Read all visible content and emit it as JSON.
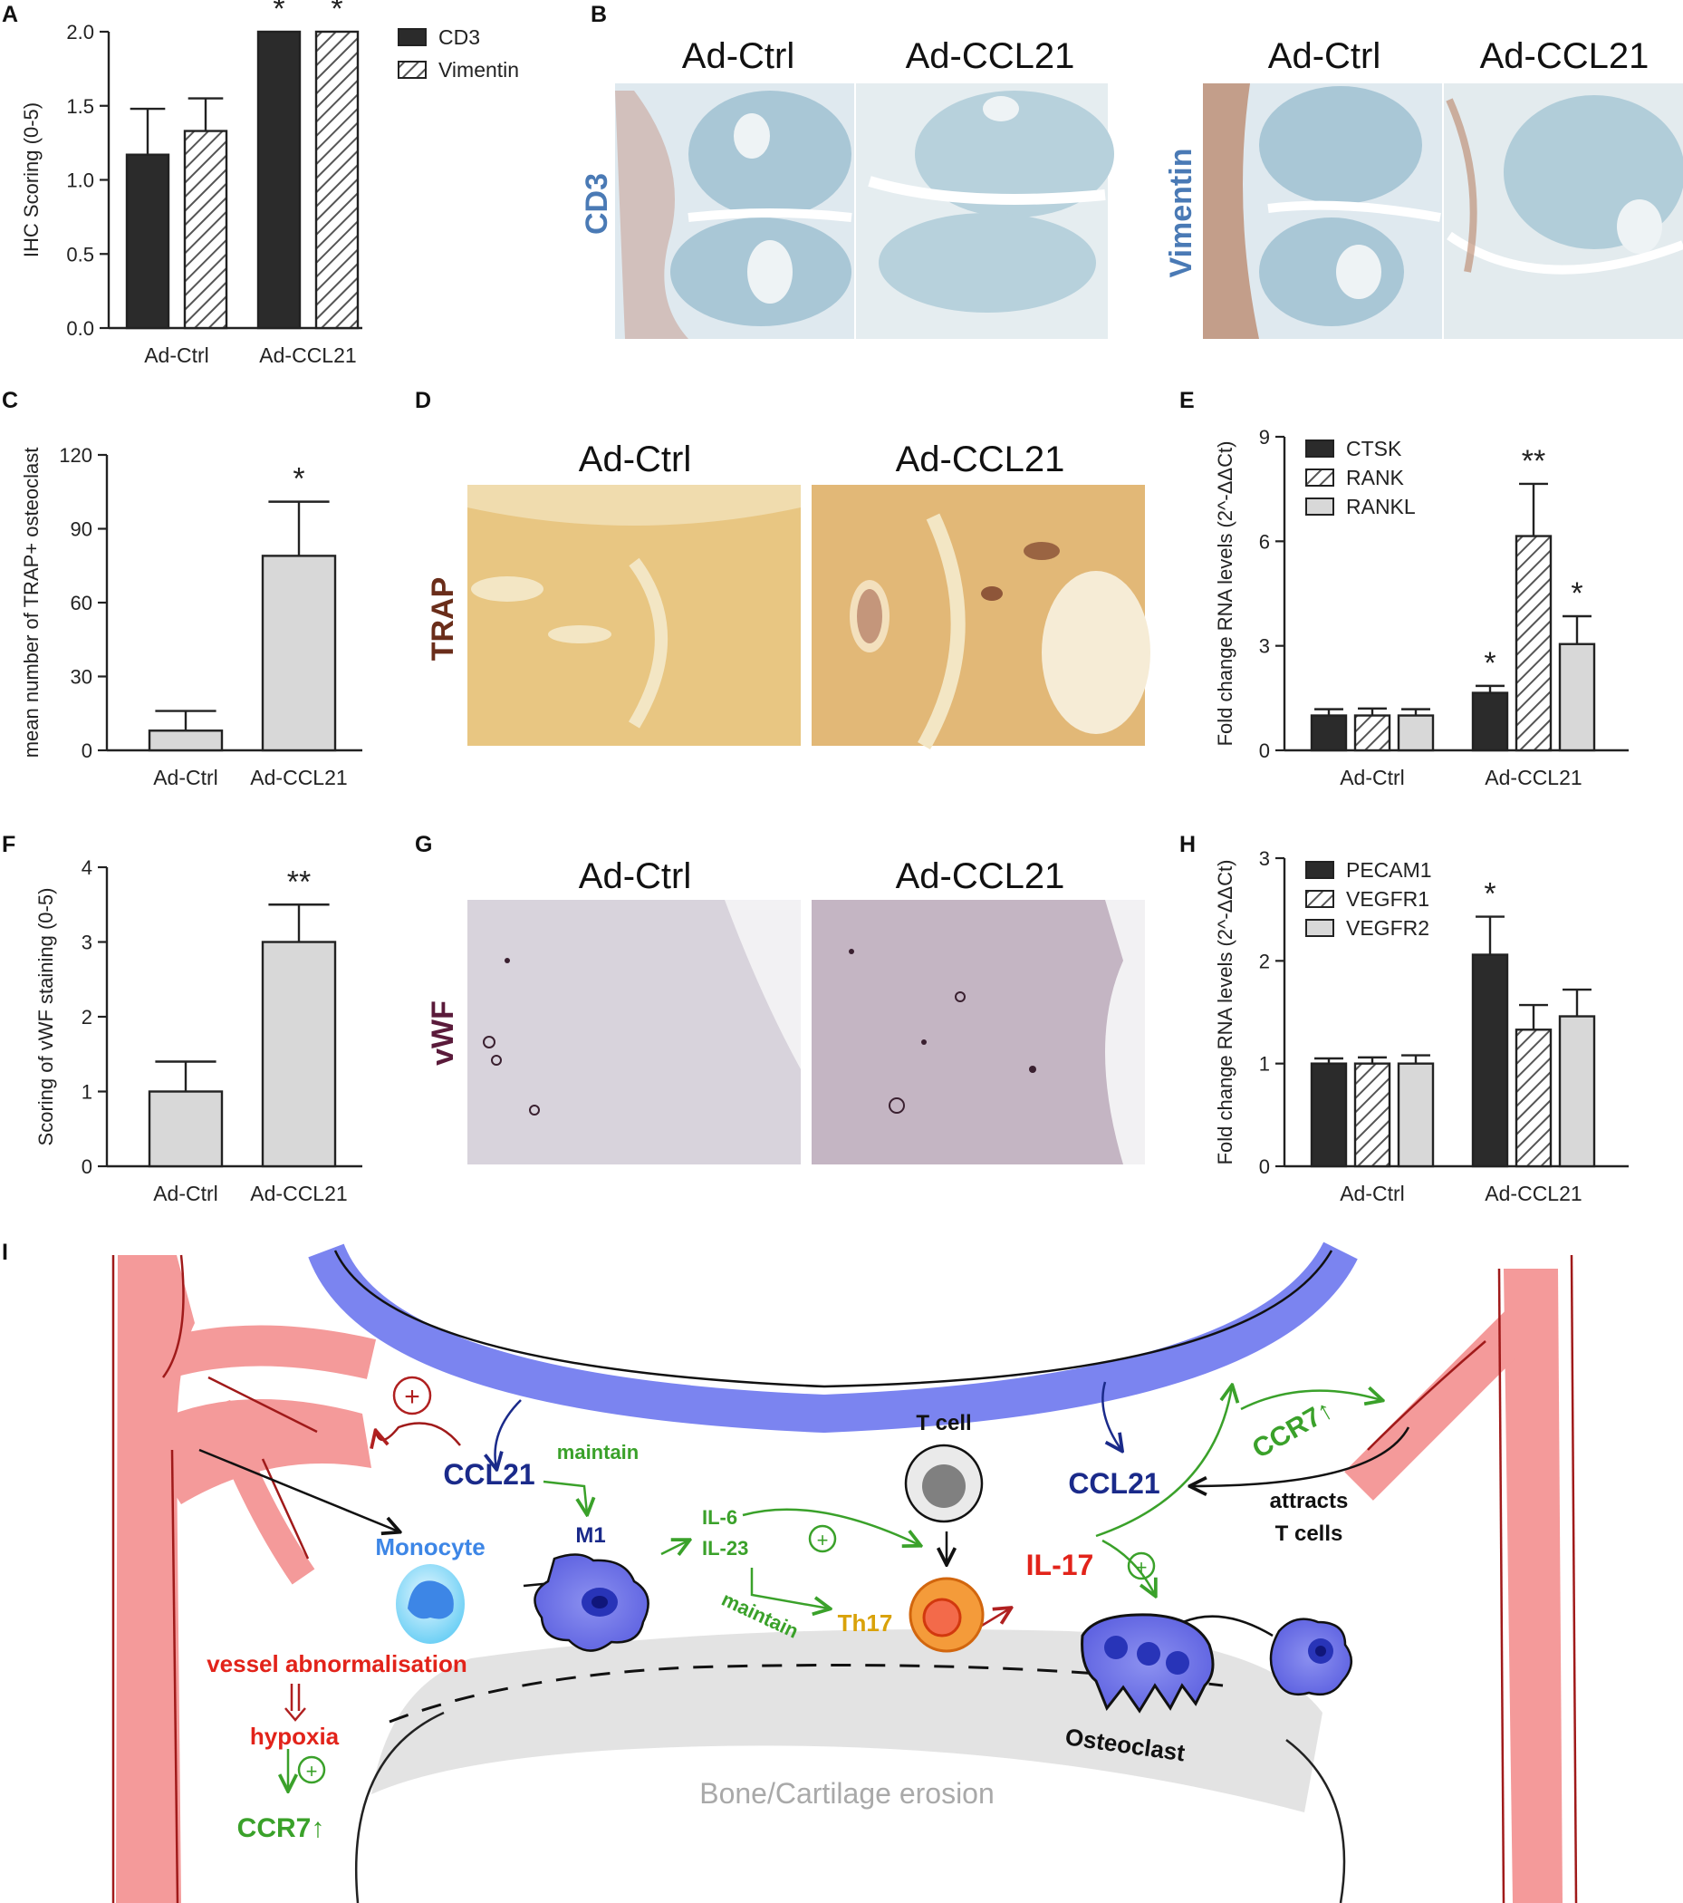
{
  "colors": {
    "dark": "#2b2b2b",
    "light": "#d8d8d8",
    "stain_blue": "#4a7ab5",
    "trap": "#6a2d1a",
    "vwf": "#5a1a3a"
  },
  "panel_labels": [
    "A",
    "B",
    "C",
    "D",
    "E",
    "F",
    "G",
    "H",
    "I"
  ],
  "chart_data": [
    {
      "panel": "A",
      "type": "bar",
      "categories": [
        "Ad-Ctrl",
        "Ad-CCL21"
      ],
      "ylabel": "IHC Scoring (0-5)",
      "ylim": [
        0,
        2.0
      ],
      "yticks": [
        "0.0",
        "0.5",
        "1.0",
        "1.5",
        "2.0"
      ],
      "series": [
        {
          "name": "CD3",
          "style": "solid-dark",
          "values": [
            1.17,
            2.0
          ],
          "errors": [
            0.31,
            0
          ],
          "marks": [
            "",
            "*"
          ]
        },
        {
          "name": "Vimentin",
          "style": "hatched",
          "values": [
            1.33,
            2.0
          ],
          "errors": [
            0.22,
            0
          ],
          "marks": [
            "",
            "*"
          ]
        }
      ],
      "legend": "right"
    },
    {
      "panel": "C",
      "type": "bar",
      "categories": [
        "Ad-Ctrl",
        "Ad-CCL21"
      ],
      "ylabel": "mean number of TRAP+ osteoclast",
      "ylim": [
        0,
        120
      ],
      "yticks": [
        "0",
        "30",
        "60",
        "90",
        "120"
      ],
      "series": [
        {
          "style": "solid-light",
          "values": [
            8,
            79
          ],
          "errors": [
            8,
            22
          ],
          "marks": [
            "",
            "*"
          ]
        }
      ]
    },
    {
      "panel": "E",
      "type": "bar",
      "categories": [
        "Ad-Ctrl",
        "Ad-CCL21"
      ],
      "ylabel": "Fold change RNA levels (2^-ΔΔCt)",
      "ylim": [
        0,
        9
      ],
      "yticks": [
        "0",
        "3",
        "6",
        "9"
      ],
      "series": [
        {
          "name": "CTSK",
          "style": "solid-dark",
          "values": [
            1.0,
            1.65
          ],
          "errors": [
            0.18,
            0.2
          ],
          "marks": [
            "",
            "*"
          ]
        },
        {
          "name": "RANK",
          "style": "hatched",
          "values": [
            1.0,
            6.15
          ],
          "errors": [
            0.2,
            1.5
          ],
          "marks": [
            "",
            "**"
          ]
        },
        {
          "name": "RANKL",
          "style": "solid-light",
          "values": [
            1.0,
            3.05
          ],
          "errors": [
            0.18,
            0.8
          ],
          "marks": [
            "",
            "*"
          ]
        }
      ],
      "legend": "top-left"
    },
    {
      "panel": "F",
      "type": "bar",
      "categories": [
        "Ad-Ctrl",
        "Ad-CCL21"
      ],
      "ylabel": "Scoring of vWF staining (0-5)",
      "ylim": [
        0,
        4
      ],
      "yticks": [
        "0",
        "1",
        "2",
        "3",
        "4"
      ],
      "series": [
        {
          "style": "solid-light",
          "values": [
            1.0,
            3.0
          ],
          "errors": [
            0.4,
            0.5
          ],
          "marks": [
            "",
            "**"
          ]
        }
      ]
    },
    {
      "panel": "H",
      "type": "bar",
      "categories": [
        "Ad-Ctrl",
        "Ad-CCL21"
      ],
      "ylabel": "Fold change RNA levels (2^-ΔΔCt)",
      "ylim": [
        0,
        3
      ],
      "yticks": [
        "0",
        "1",
        "2",
        "3"
      ],
      "series": [
        {
          "name": "PECAM1",
          "style": "solid-dark",
          "values": [
            1.0,
            2.06
          ],
          "errors": [
            0.05,
            0.37
          ],
          "marks": [
            "",
            "*"
          ]
        },
        {
          "name": "VEGFR1",
          "style": "hatched",
          "values": [
            1.0,
            1.33
          ],
          "errors": [
            0.06,
            0.24
          ],
          "marks": [
            "",
            ""
          ]
        },
        {
          "name": "VEGFR2",
          "style": "solid-light",
          "values": [
            1.0,
            1.46
          ],
          "errors": [
            0.08,
            0.26
          ],
          "marks": [
            "",
            ""
          ]
        }
      ],
      "legend": "top-left"
    }
  ],
  "micrographs": {
    "b_cd3": {
      "left": "Ad-Ctrl",
      "right": "Ad-CCL21",
      "stain": "CD3"
    },
    "b_vim": {
      "left": "Ad-Ctrl",
      "right": "Ad-CCL21",
      "stain": "Vimentin"
    },
    "d": {
      "left": "Ad-Ctrl",
      "right": "Ad-CCL21",
      "stain": "TRAP"
    },
    "g": {
      "left": "Ad-Ctrl",
      "right": "Ad-CCL21",
      "stain": "vWF"
    }
  },
  "diagram": {
    "ccl21_left": "CCL21",
    "ccl21_right": "CCL21",
    "maintain_1": "maintain",
    "maintain_2": "maintain",
    "m1": "M1",
    "monocyte": "Monocyte",
    "il6": "IL-6",
    "il23": "IL-23",
    "plus": "+",
    "tcell": "T cell",
    "th17": "Th17",
    "il17": "IL-17",
    "ccr7_right": "CCR7↑",
    "attracts1": "attracts",
    "attracts2": "T cells",
    "vessel_abn": "vessel abnormalisation",
    "hypoxia": "hypoxia",
    "ccr7_left": "CCR7↑",
    "osteoclast": "Osteoclast",
    "erosion": "Bone/Cartilage erosion"
  }
}
